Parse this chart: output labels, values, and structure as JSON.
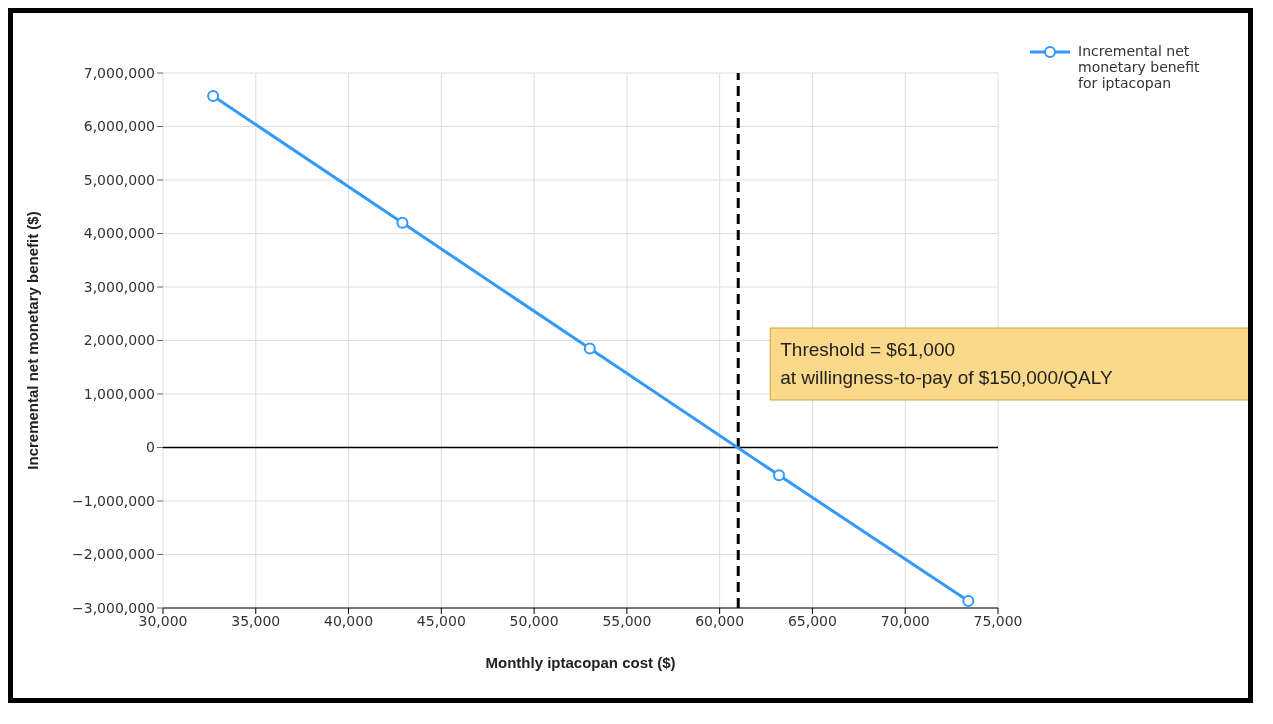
{
  "chart_data": {
    "type": "line",
    "xlabel": "Monthly iptacopan cost ($)",
    "ylabel": "Incremental net monetary benefit ($)",
    "x": [
      32700,
      42900,
      53000,
      63200,
      73400
    ],
    "series": [
      {
        "name": "Incremental net monetary benefit for iptacopan",
        "color": "#3399ff",
        "values": [
          6570000,
          4200000,
          1850000,
          -520000,
          -2870000
        ]
      }
    ],
    "xlim": [
      30000,
      75000
    ],
    "xticks": [
      {
        "value": 30000,
        "label": "30,000"
      },
      {
        "value": 35000,
        "label": "35,000"
      },
      {
        "value": 40000,
        "label": "40,000"
      },
      {
        "value": 45000,
        "label": "45,000"
      },
      {
        "value": 50000,
        "label": "50,000"
      },
      {
        "value": 55000,
        "label": "55,000"
      },
      {
        "value": 60000,
        "label": "60,000"
      },
      {
        "value": 65000,
        "label": "65,000"
      },
      {
        "value": 70000,
        "label": "70,000"
      },
      {
        "value": 75000,
        "label": "75,000"
      }
    ],
    "ylim": [
      -3000000,
      7000000
    ],
    "yticks": [
      {
        "value": -3000000,
        "label": "−3,000,000"
      },
      {
        "value": -2000000,
        "label": "−2,000,000"
      },
      {
        "value": -1000000,
        "label": "−1,000,000"
      },
      0,
      {
        "value": 1000000,
        "label": "1,000,000"
      },
      {
        "value": 2000000,
        "label": "2,000,000"
      },
      {
        "value": 3000000,
        "label": "3,000,000"
      },
      {
        "value": 4000000,
        "label": "4,000,000"
      },
      {
        "value": 5000000,
        "label": "5,000,000"
      },
      {
        "value": 6000000,
        "label": "6,000,000"
      },
      {
        "value": 7000000,
        "label": "7,000,000"
      }
    ],
    "ref_lines": [
      {
        "axis": "x",
        "value": 61000,
        "label": "Threshold = $61,000\nat willingness-to-pay of $150,000/QALY",
        "color": "#000000",
        "line_style": "dashed"
      },
      {
        "axis": "y",
        "value": 0,
        "color": "#000000",
        "line_style": "solid"
      }
    ],
    "grid": true,
    "legend": "top right",
    "marker": "circle",
    "line_style": "solid"
  }
}
